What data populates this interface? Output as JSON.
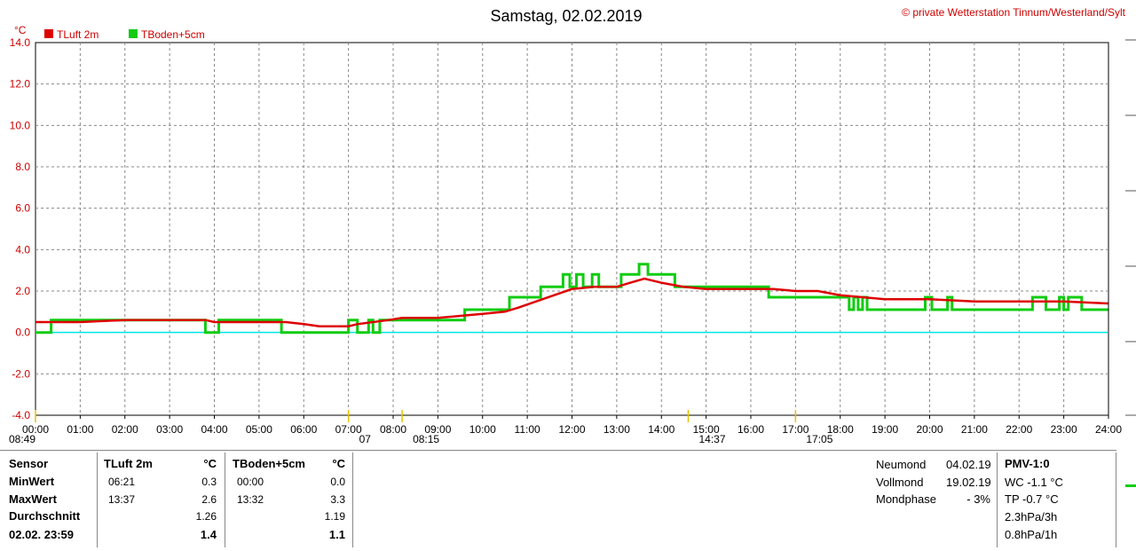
{
  "chart_data": {
    "type": "line",
    "title": "Samstag, 02.02.2019",
    "credit": "private Wetterstation Tinnum/Westerland/Sylt",
    "copyright_symbol": "©",
    "unit": "°C",
    "ylim": [
      -4.0,
      14.0
    ],
    "y_ticks": [
      "14.0",
      "12.0",
      "10.0",
      "8.0",
      "6.0",
      "4.0",
      "2.0",
      "0.0",
      "-2.0",
      "-4.0"
    ],
    "x_ticks": [
      "00:00",
      "01:00",
      "02:00",
      "03:00",
      "04:00",
      "05:00",
      "06:00",
      "07:00",
      "08:00",
      "09:00",
      "10:00",
      "11:00",
      "12:00",
      "13:00",
      "14:00",
      "15:00",
      "16:00",
      "17:00",
      "18:00",
      "19:00",
      "20:00",
      "21:00",
      "22:00",
      "23:00",
      "24:00"
    ],
    "xlim_hours": [
      0,
      24
    ],
    "grid": true,
    "legend_position": "top-left",
    "reference_line": {
      "y": 0.0,
      "color": "#00e5e5"
    },
    "markers": [
      {
        "label": "08:49",
        "hour": 0.0
      },
      {
        "label": "07",
        "hour": 7.0
      },
      {
        "label": "08:15",
        "hour": 8.2
      },
      {
        "label": "14:37",
        "hour": 14.6
      },
      {
        "label": "17:05",
        "hour": 17.0
      }
    ],
    "series": [
      {
        "name": "TLuft 2m",
        "color": "#dd0000",
        "points": [
          [
            0.0,
            0.5
          ],
          [
            1.0,
            0.5
          ],
          [
            2.0,
            0.6
          ],
          [
            3.0,
            0.6
          ],
          [
            3.8,
            0.6
          ],
          [
            4.0,
            0.5
          ],
          [
            5.0,
            0.5
          ],
          [
            5.6,
            0.5
          ],
          [
            6.0,
            0.4
          ],
          [
            6.35,
            0.3
          ],
          [
            7.0,
            0.3
          ],
          [
            7.2,
            0.4
          ],
          [
            7.9,
            0.6
          ],
          [
            8.2,
            0.7
          ],
          [
            9.0,
            0.7
          ],
          [
            9.5,
            0.8
          ],
          [
            10.0,
            0.9
          ],
          [
            10.5,
            1.0
          ],
          [
            10.8,
            1.2
          ],
          [
            11.2,
            1.5
          ],
          [
            11.6,
            1.8
          ],
          [
            12.0,
            2.1
          ],
          [
            12.5,
            2.2
          ],
          [
            13.0,
            2.2
          ],
          [
            13.3,
            2.4
          ],
          [
            13.62,
            2.6
          ],
          [
            14.0,
            2.4
          ],
          [
            14.5,
            2.2
          ],
          [
            15.0,
            2.1
          ],
          [
            16.0,
            2.1
          ],
          [
            16.5,
            2.1
          ],
          [
            17.0,
            2.0
          ],
          [
            17.5,
            2.0
          ],
          [
            18.0,
            1.8
          ],
          [
            18.5,
            1.7
          ],
          [
            19.0,
            1.6
          ],
          [
            20.0,
            1.6
          ],
          [
            21.0,
            1.5
          ],
          [
            22.0,
            1.5
          ],
          [
            23.0,
            1.5
          ],
          [
            23.99,
            1.4
          ]
        ]
      },
      {
        "name": "TBoden+5cm",
        "color": "#11cc11",
        "points": [
          [
            0.0,
            0.0
          ],
          [
            0.35,
            0.0
          ],
          [
            0.35,
            0.6
          ],
          [
            3.8,
            0.6
          ],
          [
            3.8,
            0.0
          ],
          [
            4.1,
            0.0
          ],
          [
            4.1,
            0.6
          ],
          [
            5.5,
            0.6
          ],
          [
            5.5,
            0.0
          ],
          [
            7.0,
            0.0
          ],
          [
            7.0,
            0.6
          ],
          [
            7.2,
            0.6
          ],
          [
            7.2,
            0.0
          ],
          [
            7.45,
            0.0
          ],
          [
            7.45,
            0.6
          ],
          [
            7.55,
            0.6
          ],
          [
            7.55,
            0.0
          ],
          [
            7.7,
            0.0
          ],
          [
            7.7,
            0.6
          ],
          [
            9.6,
            0.6
          ],
          [
            9.6,
            1.1
          ],
          [
            10.6,
            1.1
          ],
          [
            10.6,
            1.7
          ],
          [
            11.3,
            1.7
          ],
          [
            11.3,
            2.2
          ],
          [
            11.8,
            2.2
          ],
          [
            11.8,
            2.8
          ],
          [
            11.95,
            2.8
          ],
          [
            11.95,
            2.2
          ],
          [
            12.1,
            2.2
          ],
          [
            12.1,
            2.8
          ],
          [
            12.25,
            2.8
          ],
          [
            12.25,
            2.2
          ],
          [
            12.45,
            2.2
          ],
          [
            12.45,
            2.8
          ],
          [
            12.6,
            2.8
          ],
          [
            12.6,
            2.2
          ],
          [
            13.1,
            2.2
          ],
          [
            13.1,
            2.8
          ],
          [
            13.5,
            2.8
          ],
          [
            13.5,
            3.3
          ],
          [
            13.7,
            3.3
          ],
          [
            13.7,
            2.8
          ],
          [
            14.3,
            2.8
          ],
          [
            14.3,
            2.2
          ],
          [
            16.4,
            2.2
          ],
          [
            16.4,
            1.7
          ],
          [
            18.2,
            1.7
          ],
          [
            18.2,
            1.1
          ],
          [
            18.3,
            1.1
          ],
          [
            18.3,
            1.7
          ],
          [
            18.4,
            1.7
          ],
          [
            18.4,
            1.1
          ],
          [
            18.5,
            1.1
          ],
          [
            18.5,
            1.7
          ],
          [
            18.6,
            1.7
          ],
          [
            18.6,
            1.1
          ],
          [
            19.9,
            1.1
          ],
          [
            19.9,
            1.7
          ],
          [
            20.05,
            1.7
          ],
          [
            20.05,
            1.1
          ],
          [
            20.4,
            1.1
          ],
          [
            20.4,
            1.7
          ],
          [
            20.5,
            1.7
          ],
          [
            20.5,
            1.1
          ],
          [
            22.3,
            1.1
          ],
          [
            22.3,
            1.7
          ],
          [
            22.6,
            1.7
          ],
          [
            22.6,
            1.1
          ],
          [
            22.9,
            1.1
          ],
          [
            22.9,
            1.7
          ],
          [
            23.0,
            1.7
          ],
          [
            23.0,
            1.1
          ],
          [
            23.1,
            1.1
          ],
          [
            23.1,
            1.7
          ],
          [
            23.4,
            1.7
          ],
          [
            23.4,
            1.1
          ],
          [
            23.99,
            1.1
          ]
        ]
      }
    ]
  },
  "stats_table": {
    "sensor_label": "Sensor",
    "min_label": "MinWert",
    "max_label": "MaxWert",
    "avg_label": "Durchschnitt",
    "last_label": "02.02. 23:59",
    "col1": {
      "header": "TLuft 2m",
      "unit": "°C",
      "min_time": "06:21",
      "min": "0.3",
      "max_time": "13:37",
      "max": "2.6",
      "avg": "1.26",
      "last": "1.4"
    },
    "col2": {
      "header": "TBoden+5cm",
      "unit": "°C",
      "min_time": "00:00",
      "min": "0.0",
      "max_time": "13:32",
      "max": "3.3",
      "avg": "1.19",
      "last": "1.1"
    }
  },
  "moon": {
    "neumond_label": "Neumond",
    "neumond_date": "04.02.19",
    "vollmond_label": "Vollmond",
    "vollmond_date": "19.02.19",
    "phase_label": "Mondphase",
    "phase_value": "- 3%"
  },
  "pmv": {
    "title": "PMV-1:0",
    "wc": "WC -1.1 °C",
    "tp": "TP -0.7 °C",
    "p3h": "2.3hPa/3h",
    "p1h": "0.8hPa/1h"
  }
}
